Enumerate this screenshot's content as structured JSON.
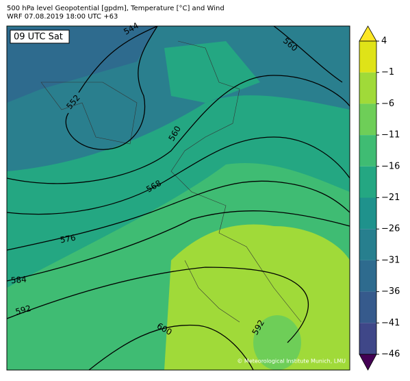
{
  "header": {
    "title": "500 hPa level Geopotential [gpdm], Temperature [°C] and Wind",
    "subtitle": "WRF 07.08.2019 18:00 UTC +63"
  },
  "map": {
    "time_label": "09 UTC Sat",
    "contour_labels": [
      "544",
      "552",
      "560",
      "560",
      "568",
      "576",
      "584",
      "592",
      "600",
      "592"
    ],
    "credit": "© Meteorological Institute Munich, LMU"
  },
  "colorbar": {
    "lim": [
      -46,
      4
    ],
    "ticks": [
      4,
      {
        "value": -1,
        "label": "−1"
      },
      {
        "value": -6,
        "label": "−6"
      },
      {
        "value": -11,
        "label": "−11"
      },
      {
        "value": -16,
        "label": "−16"
      },
      {
        "value": -21,
        "label": "−21"
      },
      {
        "value": -26,
        "label": "−26"
      },
      {
        "value": -31,
        "label": "−31"
      },
      {
        "value": -36,
        "label": "−36"
      },
      {
        "value": -41,
        "label": "−41"
      },
      {
        "value": -46,
        "label": "−46"
      }
    ],
    "colors": [
      "#dfe318",
      "#a0da39",
      "#6ece58",
      "#3fbc73",
      "#24a782",
      "#1f928c",
      "#277f8e",
      "#2e6b8e",
      "#365a8c",
      "#3f4788",
      "#46307e",
      "#481769"
    ],
    "extend_colors": [
      "#fde725",
      "#440154"
    ]
  }
}
